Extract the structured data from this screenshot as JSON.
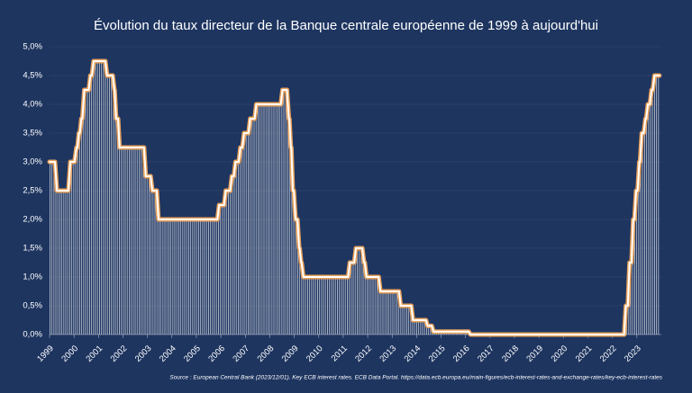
{
  "chart_data": {
    "type": "line",
    "title": "Évolution du taux directeur de la Banque centrale européenne de 1999 à aujourd'hui",
    "source": "Source :  European Central Bank (2023/12/01). Key ECB interest rates. ECB Data Portal. https://data.ecb.europa.eu/main-figures/ecb-interest-rates-and-exchange-rates/key-ecb-interest-rates",
    "series": [
      {
        "color": "#ffffff",
        "outline": "#e9a25c",
        "x": [
          1999.0,
          1999.22,
          1999.3,
          1999.77,
          1999.85,
          2000.02,
          2000.1,
          2000.14,
          2000.2,
          2000.24,
          2000.3,
          2000.34,
          2000.42,
          2000.6,
          2000.67,
          2000.73,
          2000.8,
          2001.28,
          2001.35,
          2001.58,
          2001.65,
          2001.66,
          2001.72,
          2001.8,
          2001.86,
          2002.86,
          2002.93,
          2003.13,
          2003.2,
          2003.38,
          2003.45,
          2005.86,
          2005.93,
          2006.13,
          2006.2,
          2006.38,
          2006.45,
          2006.53,
          2006.6,
          2006.73,
          2006.8,
          2006.88,
          2006.95,
          2007.13,
          2007.2,
          2007.38,
          2007.45,
          2008.45,
          2008.52,
          2008.7,
          2008.78,
          2008.8,
          2008.86,
          2008.88,
          2008.94,
          2008.98,
          2009.05,
          2009.13,
          2009.2,
          2009.22,
          2009.28,
          2009.3,
          2009.37,
          2011.2,
          2011.27,
          2011.45,
          2011.52,
          2011.78,
          2011.85,
          2011.88,
          2011.95,
          2012.45,
          2012.52,
          2013.28,
          2013.35,
          2013.78,
          2013.85,
          2014.38,
          2014.45,
          2014.62,
          2014.69,
          2016.13,
          2016.2,
          2022.48,
          2022.55,
          2022.63,
          2022.7,
          2022.78,
          2022.85,
          2022.9,
          2022.97,
          2023.03,
          2023.1,
          2023.13,
          2023.2,
          2023.28,
          2023.35,
          2023.38,
          2023.45,
          2023.53,
          2023.6,
          2023.65,
          2023.72,
          2023.92
        ],
        "values": [
          3.0,
          3.0,
          2.5,
          2.5,
          3.0,
          3.0,
          3.25,
          3.25,
          3.5,
          3.5,
          3.75,
          3.75,
          4.25,
          4.25,
          4.5,
          4.5,
          4.75,
          4.75,
          4.5,
          4.5,
          4.25,
          4.25,
          3.75,
          3.75,
          3.25,
          3.25,
          2.75,
          2.75,
          2.5,
          2.5,
          2.0,
          2.0,
          2.25,
          2.25,
          2.5,
          2.5,
          2.75,
          2.75,
          3.0,
          3.0,
          3.25,
          3.25,
          3.5,
          3.5,
          3.75,
          3.75,
          4.0,
          4.0,
          4.25,
          4.25,
          3.75,
          3.75,
          3.25,
          3.25,
          2.5,
          2.5,
          2.0,
          2.0,
          1.5,
          1.5,
          1.25,
          1.25,
          1.0,
          1.0,
          1.25,
          1.25,
          1.5,
          1.5,
          1.25,
          1.25,
          1.0,
          1.0,
          0.75,
          0.75,
          0.5,
          0.5,
          0.25,
          0.25,
          0.15,
          0.15,
          0.05,
          0.05,
          0.0,
          0.0,
          0.5,
          0.5,
          1.25,
          1.25,
          2.0,
          2.0,
          2.5,
          2.5,
          3.0,
          3.0,
          3.5,
          3.5,
          3.75,
          3.75,
          4.0,
          4.0,
          4.25,
          4.25,
          4.5,
          4.5
        ]
      }
    ],
    "xlim": [
      1999,
      2024
    ],
    "xticks": [
      1999,
      2000,
      2001,
      2002,
      2003,
      2004,
      2005,
      2006,
      2007,
      2008,
      2009,
      2010,
      2011,
      2012,
      2013,
      2014,
      2015,
      2016,
      2017,
      2018,
      2019,
      2020,
      2021,
      2022,
      2023
    ],
    "ylim": [
      0,
      5
    ],
    "yticks": [
      {
        "value": 0,
        "label": "0,0%"
      },
      {
        "value": 0.5,
        "label": "0,5%"
      },
      {
        "value": 1,
        "label": "1,0%"
      },
      {
        "value": 1.5,
        "label": "1,5%"
      },
      {
        "value": 2,
        "label": "2,0%"
      },
      {
        "value": 2.5,
        "label": "2,5%"
      },
      {
        "value": 3,
        "label": "3,0%"
      },
      {
        "value": 3.5,
        "label": "3,5%"
      },
      {
        "value": 4,
        "label": "4,0%"
      },
      {
        "value": 4.5,
        "label": "4,5%"
      },
      {
        "value": 5,
        "label": "5,0%"
      }
    ],
    "grid": true
  }
}
